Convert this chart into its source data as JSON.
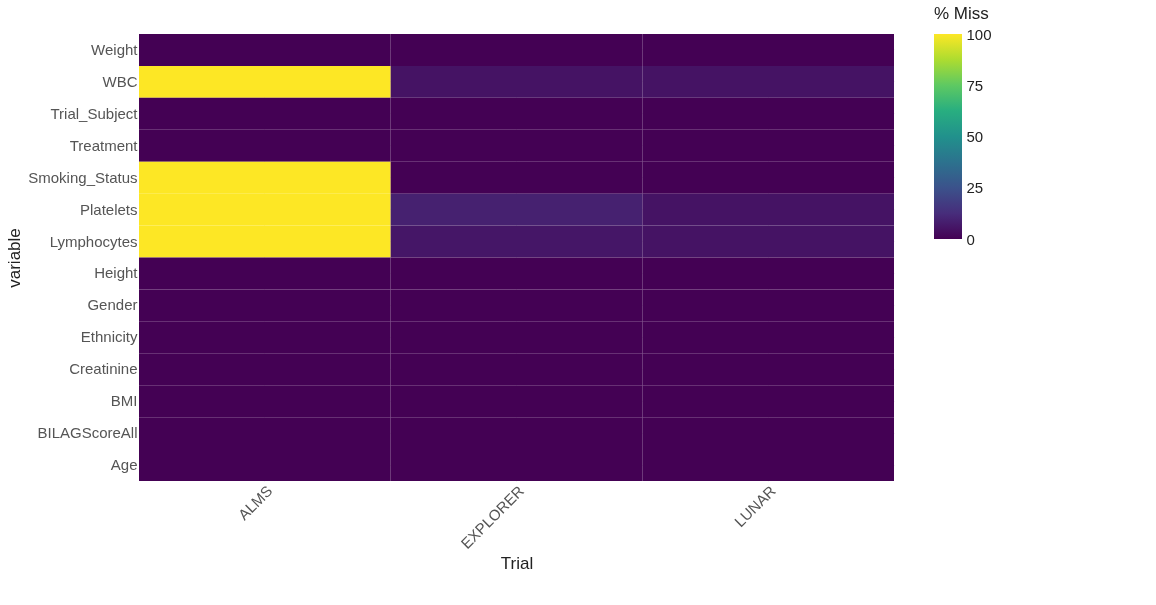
{
  "chart_data": {
    "type": "heatmap",
    "xlabel": "Trial",
    "ylabel": "variable",
    "legend_title": "% Miss",
    "categories": [
      "ALMS",
      "EXPLORER",
      "LUNAR"
    ],
    "y_categories": [
      "Weight",
      "WBC",
      "Trial_Subject",
      "Treatment",
      "Smoking_Status",
      "Platelets",
      "Lymphocytes",
      "Height",
      "Gender",
      "Ethnicity",
      "Creatinine",
      "BMI",
      "BILAGScoreAll",
      "Age"
    ],
    "cells": [
      [
        0,
        0,
        0
      ],
      [
        100,
        5,
        5
      ],
      [
        0,
        0,
        0
      ],
      [
        0,
        0,
        0
      ],
      [
        100,
        0,
        0
      ],
      [
        100,
        9,
        5
      ],
      [
        100,
        6,
        5
      ],
      [
        0,
        0,
        0
      ],
      [
        0,
        0,
        0
      ],
      [
        0,
        0,
        0
      ],
      [
        0,
        0,
        0
      ],
      [
        0,
        0,
        0
      ],
      [
        0,
        0,
        0
      ],
      [
        0,
        0,
        0
      ]
    ],
    "clim": [
      0,
      100
    ],
    "cticks": [
      0,
      25,
      50,
      75,
      100
    ],
    "grid": true
  }
}
